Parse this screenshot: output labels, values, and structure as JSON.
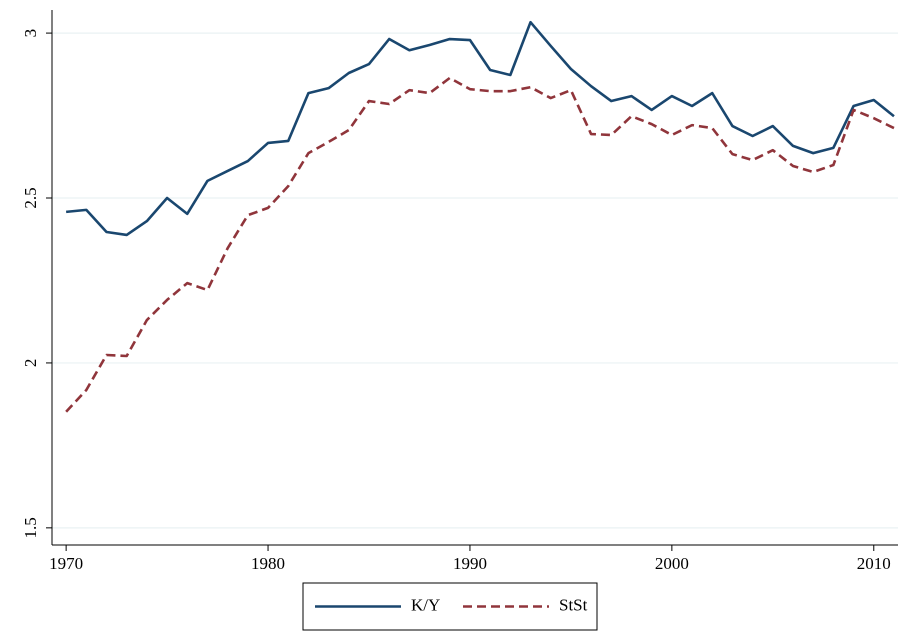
{
  "chart_data": {
    "type": "line",
    "x": [
      1970,
      1971,
      1972,
      1973,
      1974,
      1975,
      1976,
      1977,
      1978,
      1979,
      1980,
      1981,
      1982,
      1983,
      1984,
      1985,
      1986,
      1987,
      1988,
      1989,
      1990,
      1991,
      1992,
      1993,
      1994,
      1995,
      1996,
      1997,
      1998,
      1999,
      2000,
      2001,
      2002,
      2003,
      2004,
      2005,
      2006,
      2007,
      2008,
      2009,
      2010,
      2011
    ],
    "series": [
      {
        "name": "K/Y",
        "color": "#1a476f",
        "line_style": "solid",
        "values": [
          2.458,
          2.464,
          2.397,
          2.388,
          2.43,
          2.5,
          2.452,
          2.552,
          2.582,
          2.612,
          2.667,
          2.673,
          2.818,
          2.833,
          2.879,
          2.906,
          2.982,
          2.948,
          2.964,
          2.982,
          2.979,
          2.888,
          2.873,
          3.033,
          2.961,
          2.891,
          2.839,
          2.794,
          2.809,
          2.767,
          2.809,
          2.779,
          2.818,
          2.718,
          2.688,
          2.718,
          2.658,
          2.636,
          2.652,
          2.779,
          2.797,
          2.748
        ]
      },
      {
        "name": "StSt",
        "color": "#90353b",
        "line_style": "dashed",
        "values": [
          1.852,
          1.918,
          2.024,
          2.021,
          2.13,
          2.191,
          2.242,
          2.221,
          2.348,
          2.448,
          2.47,
          2.536,
          2.636,
          2.67,
          2.706,
          2.794,
          2.785,
          2.827,
          2.818,
          2.864,
          2.83,
          2.824,
          2.824,
          2.836,
          2.803,
          2.827,
          2.694,
          2.691,
          2.748,
          2.724,
          2.691,
          2.721,
          2.712,
          2.633,
          2.615,
          2.645,
          2.597,
          2.579,
          2.6,
          2.767,
          2.742,
          2.712
        ]
      }
    ],
    "xlim": [
      1969.3,
      2011.2
    ],
    "xticks": [
      1970,
      1980,
      1990,
      2000,
      2010
    ],
    "ylim": [
      1.448,
      3.07
    ],
    "yticks": [
      1.5,
      2,
      2.5,
      3
    ],
    "grid": true,
    "legend_position": "bottom"
  }
}
